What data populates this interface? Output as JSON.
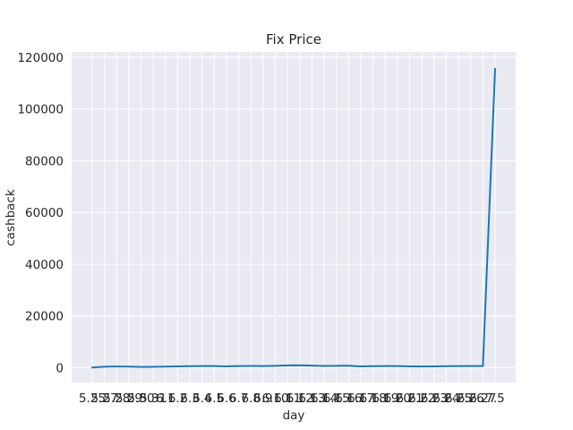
{
  "chart_data": {
    "type": "line",
    "title": "Fix Price",
    "xlabel": "day",
    "ylabel": "cashback",
    "categories": [
      "5.25",
      "5.27",
      "5.28",
      "5.29",
      "5.30",
      "5.31",
      "6.1",
      "6.2",
      "6.3",
      "6.4",
      "6.5",
      "6.6",
      "6.7",
      "6.8",
      "6.9",
      "6.10",
      "6.11",
      "6.12",
      "6.13",
      "6.14",
      "6.15",
      "6.16",
      "6.17",
      "6.18",
      "6.19",
      "6.20",
      "6.21",
      "6.22",
      "6.23",
      "6.24",
      "6.25",
      "6.26",
      "6.27",
      "7.5"
    ],
    "series": [
      {
        "name": "",
        "values": [
          100,
          400,
          500,
          450,
          300,
          350,
          450,
          550,
          600,
          650,
          650,
          550,
          650,
          700,
          650,
          750,
          900,
          950,
          850,
          700,
          750,
          800,
          550,
          600,
          650,
          650,
          550,
          500,
          550,
          600,
          650,
          650,
          650,
          115500
        ]
      }
    ],
    "ylim": [
      -5700,
      122000
    ],
    "yticks": [
      0,
      20000,
      40000,
      60000,
      80000,
      100000,
      120000
    ],
    "grid": true,
    "legend": "none",
    "colors": {
      "line": "#1f77b4",
      "plot_bg": "#eaeaf2",
      "grid": "#ffffff"
    }
  }
}
